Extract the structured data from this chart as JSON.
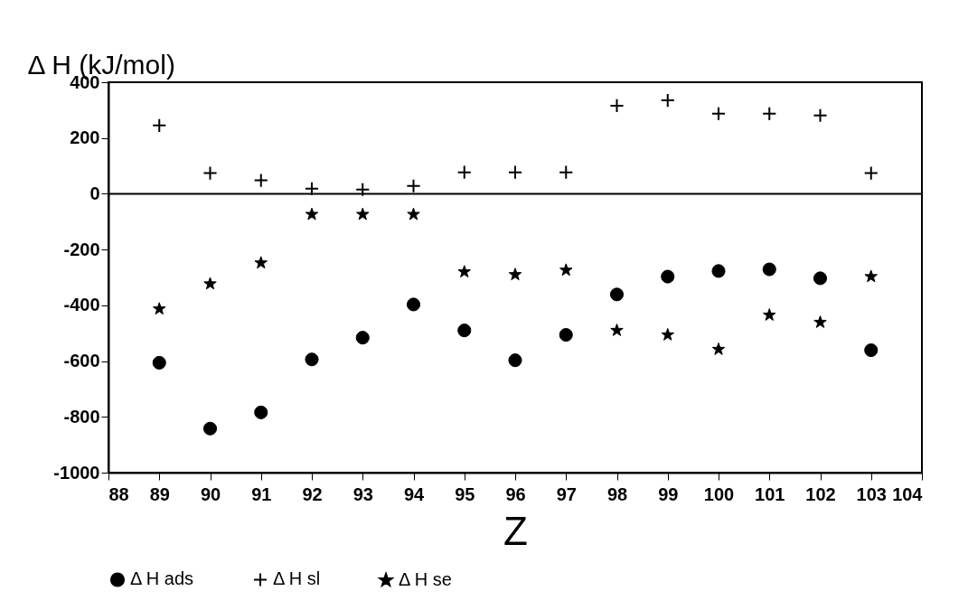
{
  "chart_data": {
    "type": "scatter",
    "ylabel": "Δ H (kJ/mol)",
    "xlabel": "Z",
    "x": [
      89,
      90,
      91,
      92,
      93,
      94,
      95,
      96,
      97,
      98,
      99,
      100,
      101,
      102,
      103
    ],
    "series": [
      {
        "name": "Δ H ads",
        "color": "#000000",
        "marker": "circle",
        "values": [
          -606,
          -842,
          -784,
          -594,
          -516,
          -397,
          -490,
          -597,
          -506,
          -361,
          -297,
          -277,
          -271,
          -303,
          -561
        ]
      },
      {
        "name": "Δ H sl",
        "color": "#000000",
        "marker": "cross",
        "values": [
          245,
          74,
          48,
          18,
          15,
          28,
          77,
          77,
          77,
          316,
          335,
          287,
          287,
          281,
          74
        ]
      },
      {
        "name": "Δ H se",
        "color": "#000000",
        "marker": "star",
        "values": [
          -413,
          -323,
          -248,
          -74,
          -74,
          -74,
          -280,
          -290,
          -274,
          -490,
          -506,
          -558,
          -435,
          -461,
          -297
        ]
      }
    ],
    "xlim": [
      88,
      104
    ],
    "xticks": [
      88,
      89,
      90,
      91,
      92,
      93,
      94,
      95,
      96,
      97,
      98,
      99,
      100,
      101,
      102,
      103,
      104
    ],
    "ylim": [
      -1000,
      400
    ],
    "yticks": [
      -1000,
      -800,
      -600,
      -400,
      -200,
      0,
      200,
      400
    ],
    "ref_lines": [
      {
        "axis": "y",
        "value": 0,
        "color": "#000000"
      }
    ],
    "grid": false,
    "legend": "bottom"
  }
}
